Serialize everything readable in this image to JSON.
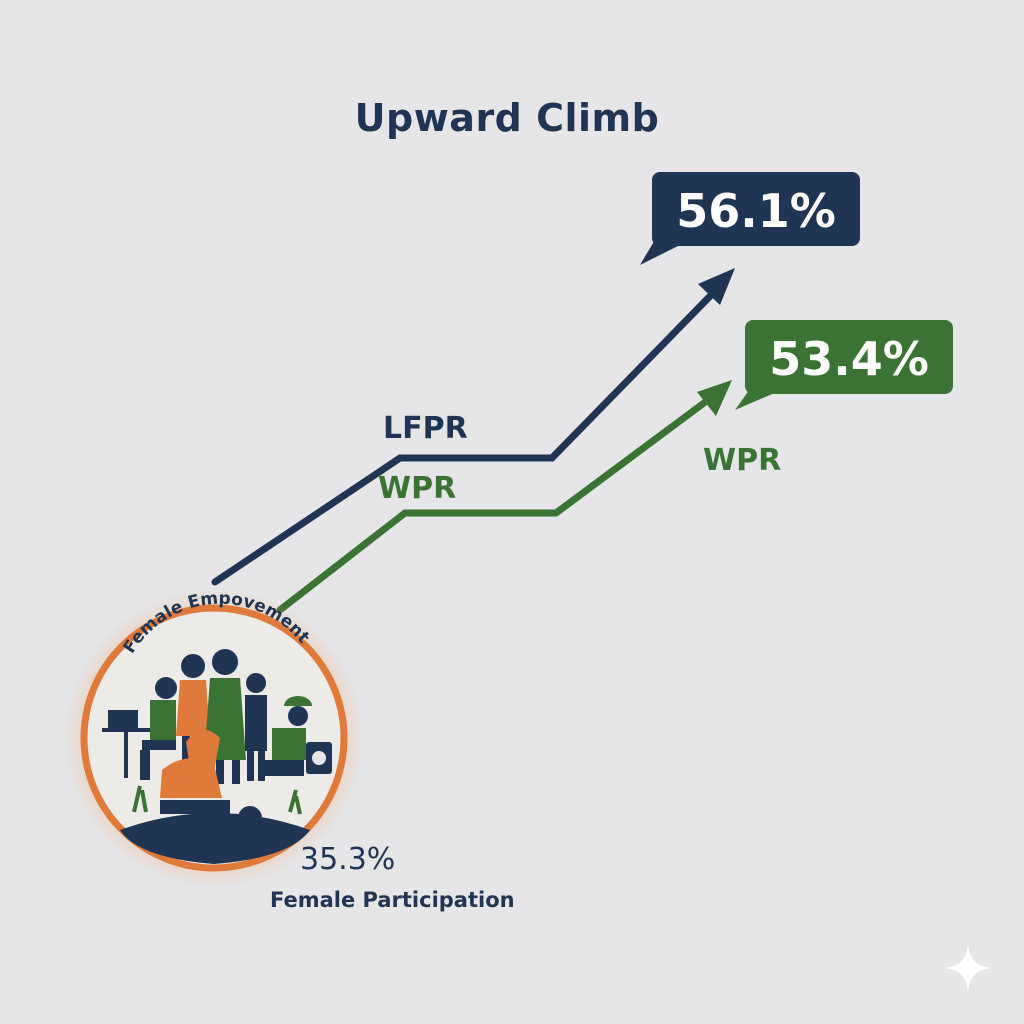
{
  "title": "Upward Climb",
  "chart_data": {
    "type": "line",
    "series": [
      {
        "name": "LFPR",
        "end_value": "56.1%",
        "color": "#1f3553"
      },
      {
        "name": "WPR",
        "end_value": "53.4%",
        "color": "#3b7334"
      }
    ],
    "grid": false,
    "legend": "inline labels"
  },
  "badge": {
    "text": "Female Empovement"
  },
  "start_stat": {
    "value": "35.3%",
    "label": "Female Participation"
  },
  "colors": {
    "navy": "#1f3553",
    "green": "#3b7334",
    "orange": "#e07a3a",
    "background": "#e6e6e8"
  },
  "icons": {
    "corner": "sparkle-icon"
  }
}
